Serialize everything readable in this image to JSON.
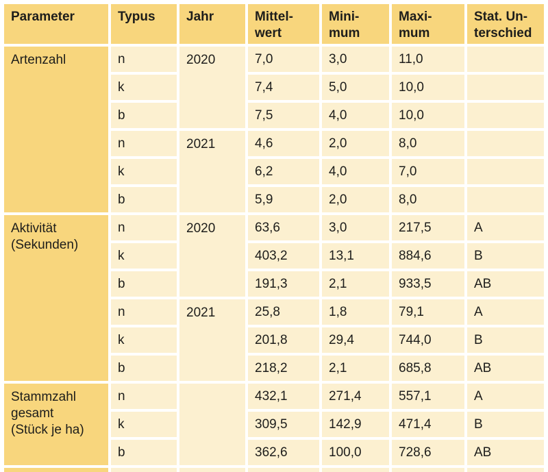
{
  "colors": {
    "header_bg": "#f8d67d",
    "cell_bg": "#fcf0d0",
    "text": "#1d1d1b",
    "gap": "#ffffff"
  },
  "chart_data": {
    "type": "table",
    "columns": [
      "Parameter",
      "Typus",
      "Jahr",
      "Mittel-\nwert",
      "Mini-\nmum",
      "Maxi-\nmum",
      "Stat. Un-\nterschied"
    ],
    "sections": [
      {
        "parameter": "Artenzahl",
        "groups": [
          {
            "jahr": "2020",
            "rows": [
              [
                "n",
                "7,0",
                "3,0",
                "11,0",
                ""
              ],
              [
                "k",
                "7,4",
                "5,0",
                "10,0",
                ""
              ],
              [
                "b",
                "7,5",
                "4,0",
                "10,0",
                ""
              ]
            ]
          },
          {
            "jahr": "2021",
            "rows": [
              [
                "n",
                "4,6",
                "2,0",
                "8,0",
                ""
              ],
              [
                "k",
                "6,2",
                "4,0",
                "7,0",
                ""
              ],
              [
                "b",
                "5,9",
                "2,0",
                "8,0",
                ""
              ]
            ]
          }
        ]
      },
      {
        "parameter": "Aktivität\n(Sekunden)",
        "groups": [
          {
            "jahr": "2020",
            "rows": [
              [
                "n",
                "63,6",
                "3,0",
                "217,5",
                "A"
              ],
              [
                "k",
                "403,2",
                "13,1",
                "884,6",
                "B"
              ],
              [
                "b",
                "191,3",
                "2,1",
                "933,5",
                "AB"
              ]
            ]
          },
          {
            "jahr": "2021",
            "rows": [
              [
                "n",
                "25,8",
                "1,8",
                "79,1",
                "A"
              ],
              [
                "k",
                "201,8",
                "29,4",
                "744,0",
                "B"
              ],
              [
                "b",
                "218,2",
                "2,1",
                "685,8",
                "AB"
              ]
            ]
          }
        ]
      },
      {
        "parameter": "Stammzahl\ngesamt\n(Stück je ha)",
        "groups": [
          {
            "jahr": "",
            "rows": [
              [
                "n",
                "432,1",
                "271,4",
                "557,1",
                "A"
              ],
              [
                "k",
                "309,5",
                "142,9",
                "471,4",
                "B"
              ],
              [
                "b",
                "362,6",
                "100,0",
                "728,6",
                "AB"
              ]
            ]
          }
        ]
      }
    ]
  }
}
